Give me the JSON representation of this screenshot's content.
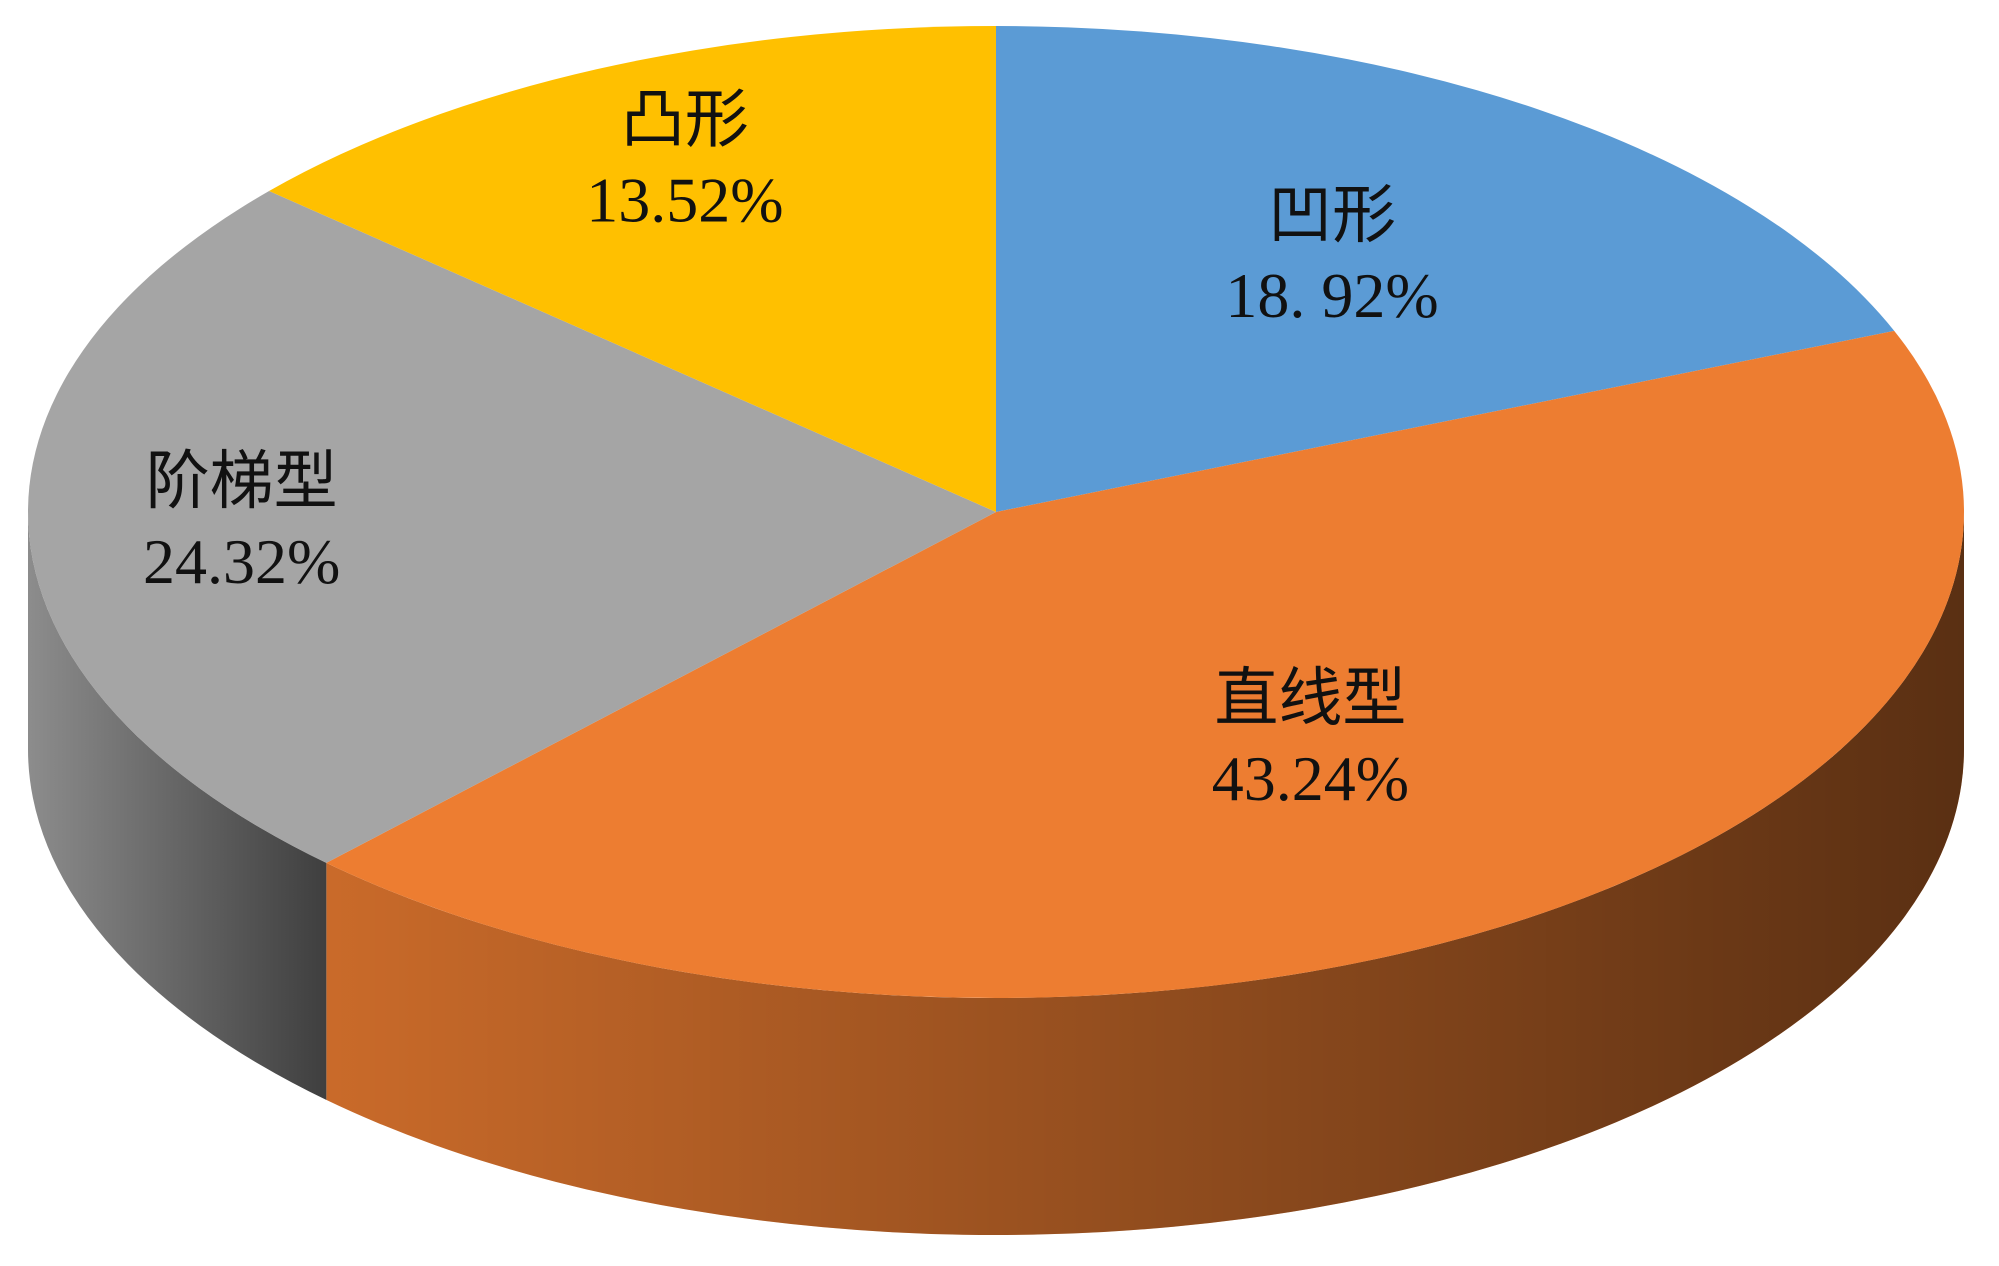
{
  "chart_data": {
    "type": "pie",
    "categories": [
      "凹形",
      "直线型",
      "阶梯型",
      "凸形"
    ],
    "values": [
      18.92,
      43.24,
      24.32,
      13.52
    ],
    "value_labels": [
      "18. 92%",
      "43.24%",
      "24.32%",
      "13.52%"
    ],
    "colors": [
      "#5b9bd5",
      "#ed7d31",
      "#a5a5a5",
      "#ffc000"
    ]
  }
}
